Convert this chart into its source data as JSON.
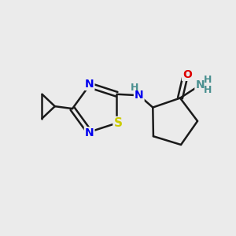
{
  "bg_color": "#ebebeb",
  "bond_color": "#1a1a1a",
  "bond_width": 1.8,
  "atom_colors": {
    "N": "#0000ee",
    "S": "#cccc00",
    "O": "#dd0000",
    "C": "#1a1a1a",
    "H": "#4a9090"
  },
  "font_size_atom": 10,
  "font_size_H": 9,
  "layout": {
    "xlim": [
      0,
      10
    ],
    "ylim": [
      0,
      10
    ]
  }
}
